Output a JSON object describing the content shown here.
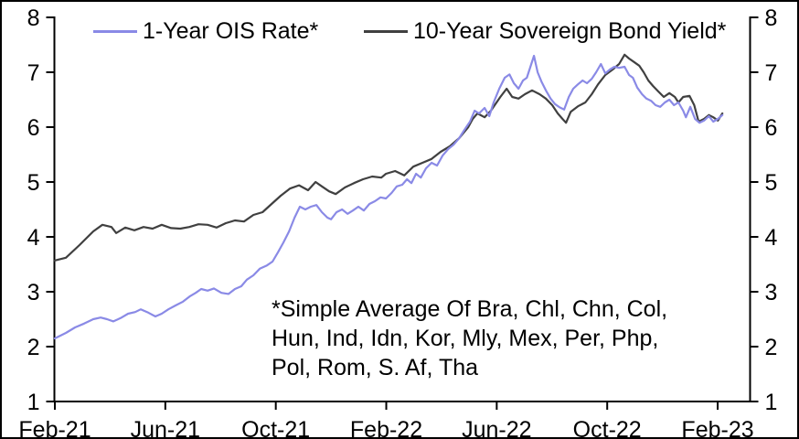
{
  "figure": {
    "background": "#ffffff",
    "border_color": "#000000",
    "axis_color": "#000000"
  },
  "legend": {
    "items": [
      {
        "label": "1-Year OIS Rate*",
        "color": "#8A8AE6"
      },
      {
        "label": "10-Year Sovereign Bond Yield*",
        "color": "#404040"
      }
    ]
  },
  "annotation": {
    "lines": [
      "*Simple Average Of Bra, Chl, Chn, Col,",
      "Hun, Ind, Idn, Kor, Mly, Mex, Per, Php,",
      "Pol, Rom, S. Af, Tha"
    ]
  },
  "chart_data": {
    "type": "line",
    "title": "",
    "xlabel": "",
    "ylabel": "",
    "unit": "percent",
    "grid": false,
    "legend_position": "top",
    "ylim": [
      1,
      8
    ],
    "xlim_months_since_feb_2021": [
      0,
      25.2
    ],
    "y_ticks": [
      1,
      2,
      3,
      4,
      5,
      6,
      7,
      8
    ],
    "y_axis_sides": [
      "left",
      "right"
    ],
    "x_ticks": [
      {
        "label": "Feb-21",
        "m": 0
      },
      {
        "label": "Jun-21",
        "m": 4
      },
      {
        "label": "Oct-21",
        "m": 8
      },
      {
        "label": "Feb-22",
        "m": 12
      },
      {
        "label": "Jun-22",
        "m": 16
      },
      {
        "label": "Oct-22",
        "m": 20
      },
      {
        "label": "Feb-23",
        "m": 24
      }
    ],
    "series": [
      {
        "name": "1-Year OIS Rate*",
        "color": "#8A8AE6",
        "points": [
          [
            0,
            2.15
          ],
          [
            0.4,
            2.25
          ],
          [
            0.73,
            2.35
          ],
          [
            1.06,
            2.42
          ],
          [
            1.39,
            2.5
          ],
          [
            1.66,
            2.53
          ],
          [
            1.89,
            2.5
          ],
          [
            2.12,
            2.46
          ],
          [
            2.38,
            2.52
          ],
          [
            2.65,
            2.6
          ],
          [
            2.91,
            2.63
          ],
          [
            3.11,
            2.68
          ],
          [
            3.38,
            2.62
          ],
          [
            3.64,
            2.55
          ],
          [
            3.87,
            2.6
          ],
          [
            4.11,
            2.68
          ],
          [
            4.37,
            2.75
          ],
          [
            4.64,
            2.82
          ],
          [
            4.9,
            2.92
          ],
          [
            5.1,
            2.98
          ],
          [
            5.3,
            3.05
          ],
          [
            5.53,
            3.02
          ],
          [
            5.76,
            3.06
          ],
          [
            6.03,
            2.98
          ],
          [
            6.29,
            2.96
          ],
          [
            6.52,
            3.05
          ],
          [
            6.75,
            3.1
          ],
          [
            6.95,
            3.22
          ],
          [
            7.19,
            3.3
          ],
          [
            7.42,
            3.42
          ],
          [
            7.68,
            3.48
          ],
          [
            7.88,
            3.55
          ],
          [
            8.08,
            3.72
          ],
          [
            8.28,
            3.9
          ],
          [
            8.48,
            4.1
          ],
          [
            8.68,
            4.35
          ],
          [
            8.87,
            4.55
          ],
          [
            9.07,
            4.5
          ],
          [
            9.27,
            4.55
          ],
          [
            9.47,
            4.58
          ],
          [
            9.67,
            4.45
          ],
          [
            9.87,
            4.35
          ],
          [
            10,
            4.32
          ],
          [
            10.2,
            4.45
          ],
          [
            10.4,
            4.5
          ],
          [
            10.6,
            4.42
          ],
          [
            10.79,
            4.48
          ],
          [
            10.99,
            4.55
          ],
          [
            11.19,
            4.48
          ],
          [
            11.39,
            4.6
          ],
          [
            11.59,
            4.65
          ],
          [
            11.79,
            4.72
          ],
          [
            11.99,
            4.7
          ],
          [
            12.19,
            4.8
          ],
          [
            12.38,
            4.92
          ],
          [
            12.58,
            4.95
          ],
          [
            12.75,
            5.05
          ],
          [
            12.91,
            4.98
          ],
          [
            13.08,
            5.15
          ],
          [
            13.25,
            5.08
          ],
          [
            13.44,
            5.25
          ],
          [
            13.64,
            5.35
          ],
          [
            13.84,
            5.3
          ],
          [
            14.04,
            5.48
          ],
          [
            14.24,
            5.6
          ],
          [
            14.44,
            5.68
          ],
          [
            14.64,
            5.8
          ],
          [
            14.83,
            5.95
          ],
          [
            15.03,
            6.1
          ],
          [
            15.2,
            6.3
          ],
          [
            15.36,
            6.25
          ],
          [
            15.56,
            6.35
          ],
          [
            15.73,
            6.2
          ],
          [
            15.89,
            6.45
          ],
          [
            16.09,
            6.7
          ],
          [
            16.29,
            6.9
          ],
          [
            16.46,
            6.96
          ],
          [
            16.62,
            6.8
          ],
          [
            16.79,
            6.7
          ],
          [
            16.95,
            6.85
          ],
          [
            17.09,
            6.9
          ],
          [
            17.22,
            7.1
          ],
          [
            17.35,
            7.3
          ],
          [
            17.48,
            7.0
          ],
          [
            17.62,
            6.83
          ],
          [
            17.78,
            6.67
          ],
          [
            17.95,
            6.52
          ],
          [
            18.11,
            6.42
          ],
          [
            18.28,
            6.36
          ],
          [
            18.44,
            6.32
          ],
          [
            18.61,
            6.55
          ],
          [
            18.77,
            6.7
          ],
          [
            18.94,
            6.78
          ],
          [
            19.11,
            6.85
          ],
          [
            19.27,
            6.8
          ],
          [
            19.44,
            6.88
          ],
          [
            19.6,
            7.0
          ],
          [
            19.77,
            7.15
          ],
          [
            19.93,
            6.98
          ],
          [
            20.1,
            7.05
          ],
          [
            20.26,
            7.1
          ],
          [
            20.43,
            7.08
          ],
          [
            20.63,
            7.1
          ],
          [
            20.79,
            6.95
          ],
          [
            20.93,
            6.9
          ],
          [
            21.09,
            6.72
          ],
          [
            21.26,
            6.6
          ],
          [
            21.42,
            6.52
          ],
          [
            21.59,
            6.48
          ],
          [
            21.75,
            6.4
          ],
          [
            21.92,
            6.37
          ],
          [
            22.09,
            6.45
          ],
          [
            22.25,
            6.5
          ],
          [
            22.42,
            6.4
          ],
          [
            22.58,
            6.45
          ],
          [
            22.75,
            6.3
          ],
          [
            22.85,
            6.18
          ],
          [
            23.01,
            6.37
          ],
          [
            23.18,
            6.15
          ],
          [
            23.34,
            6.08
          ],
          [
            23.51,
            6.12
          ],
          [
            23.68,
            6.2
          ],
          [
            23.84,
            6.1
          ],
          [
            24.01,
            6.15
          ],
          [
            24.17,
            6.22
          ]
        ]
      },
      {
        "name": "10-Year Sovereign Bond Yield*",
        "color": "#404040",
        "points": [
          [
            0,
            3.57
          ],
          [
            0.4,
            3.62
          ],
          [
            0.89,
            3.85
          ],
          [
            1.39,
            4.1
          ],
          [
            1.72,
            4.22
          ],
          [
            2.05,
            4.18
          ],
          [
            2.22,
            4.07
          ],
          [
            2.55,
            4.17
          ],
          [
            2.88,
            4.12
          ],
          [
            3.21,
            4.18
          ],
          [
            3.54,
            4.15
          ],
          [
            3.87,
            4.22
          ],
          [
            4.21,
            4.16
          ],
          [
            4.54,
            4.15
          ],
          [
            4.87,
            4.18
          ],
          [
            5.2,
            4.23
          ],
          [
            5.53,
            4.22
          ],
          [
            5.86,
            4.17
          ],
          [
            6.19,
            4.25
          ],
          [
            6.52,
            4.3
          ],
          [
            6.85,
            4.28
          ],
          [
            7.19,
            4.4
          ],
          [
            7.52,
            4.45
          ],
          [
            7.85,
            4.6
          ],
          [
            8.18,
            4.75
          ],
          [
            8.51,
            4.88
          ],
          [
            8.84,
            4.94
          ],
          [
            9.17,
            4.85
          ],
          [
            9.44,
            5.0
          ],
          [
            9.67,
            4.92
          ],
          [
            9.93,
            4.83
          ],
          [
            10.17,
            4.78
          ],
          [
            10.5,
            4.9
          ],
          [
            10.83,
            4.98
          ],
          [
            11.16,
            5.05
          ],
          [
            11.49,
            5.1
          ],
          [
            11.82,
            5.08
          ],
          [
            11.99,
            5.15
          ],
          [
            12.32,
            5.2
          ],
          [
            12.65,
            5.12
          ],
          [
            12.98,
            5.28
          ],
          [
            13.31,
            5.35
          ],
          [
            13.64,
            5.42
          ],
          [
            13.97,
            5.55
          ],
          [
            14.3,
            5.65
          ],
          [
            14.64,
            5.8
          ],
          [
            14.97,
            6.0
          ],
          [
            15.13,
            6.15
          ],
          [
            15.3,
            6.25
          ],
          [
            15.56,
            6.18
          ],
          [
            15.79,
            6.3
          ],
          [
            16.13,
            6.55
          ],
          [
            16.36,
            6.7
          ],
          [
            16.56,
            6.55
          ],
          [
            16.79,
            6.52
          ],
          [
            17.02,
            6.6
          ],
          [
            17.28,
            6.67
          ],
          [
            17.55,
            6.6
          ],
          [
            17.78,
            6.52
          ],
          [
            18.01,
            6.4
          ],
          [
            18.21,
            6.25
          ],
          [
            18.38,
            6.15
          ],
          [
            18.51,
            6.08
          ],
          [
            18.68,
            6.28
          ],
          [
            18.94,
            6.38
          ],
          [
            19.21,
            6.45
          ],
          [
            19.44,
            6.6
          ],
          [
            19.67,
            6.78
          ],
          [
            19.93,
            6.95
          ],
          [
            20.2,
            7.05
          ],
          [
            20.43,
            7.15
          ],
          [
            20.63,
            7.32
          ],
          [
            20.79,
            7.25
          ],
          [
            20.99,
            7.18
          ],
          [
            21.16,
            7.12
          ],
          [
            21.32,
            7.0
          ],
          [
            21.49,
            6.85
          ],
          [
            21.66,
            6.75
          ],
          [
            21.85,
            6.65
          ],
          [
            22.05,
            6.55
          ],
          [
            22.25,
            6.62
          ],
          [
            22.45,
            6.55
          ],
          [
            22.58,
            6.45
          ],
          [
            22.75,
            6.55
          ],
          [
            22.98,
            6.57
          ],
          [
            23.15,
            6.4
          ],
          [
            23.31,
            6.1
          ],
          [
            23.51,
            6.15
          ],
          [
            23.68,
            6.22
          ],
          [
            23.84,
            6.18
          ],
          [
            24.01,
            6.12
          ],
          [
            24.17,
            6.25
          ]
        ]
      }
    ]
  }
}
